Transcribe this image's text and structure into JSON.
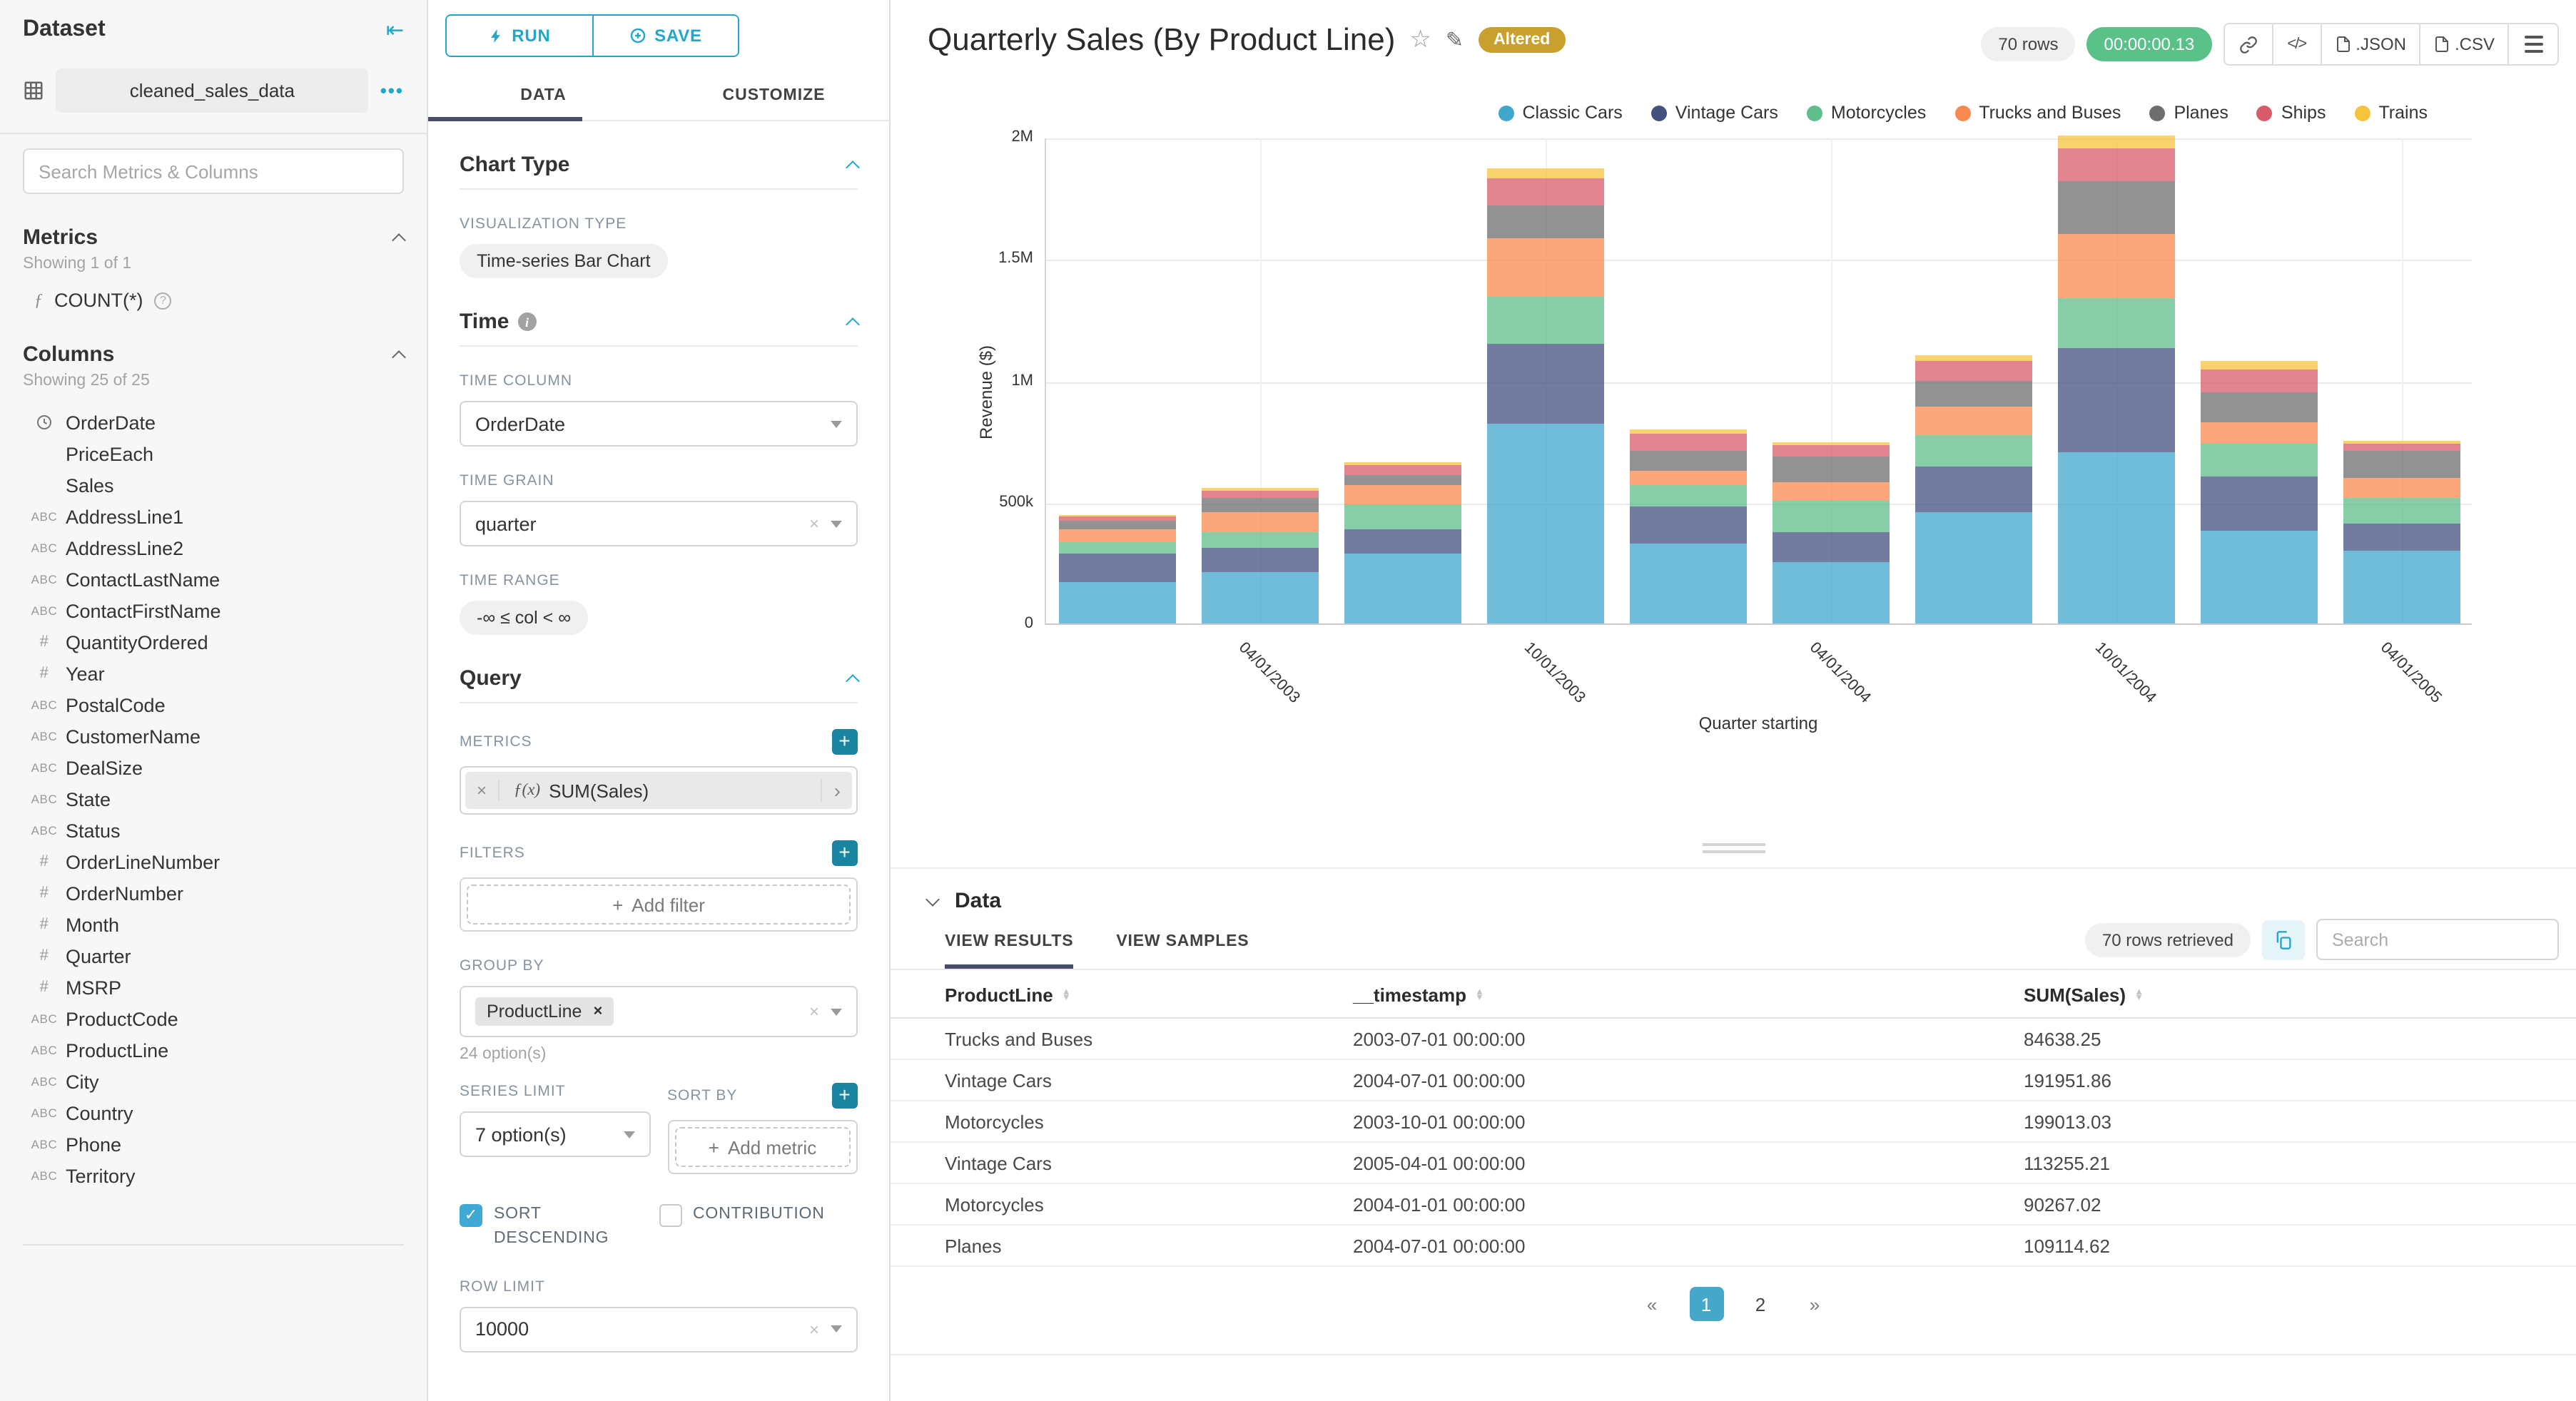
{
  "left_panel": {
    "title": "Dataset",
    "dataset_name": "cleaned_sales_data",
    "more_menu": "•••",
    "search_placeholder": "Search Metrics & Columns",
    "metrics_section": {
      "title": "Metrics",
      "showing": "Showing 1 of 1",
      "items": [
        {
          "icon": "function",
          "label": "COUNT(*)"
        }
      ]
    },
    "columns_section": {
      "title": "Columns",
      "showing": "Showing 25 of 25",
      "items": [
        {
          "type": "time",
          "label": "OrderDate"
        },
        {
          "type": "none",
          "label": "PriceEach"
        },
        {
          "type": "none",
          "label": "Sales"
        },
        {
          "type": "text",
          "label": "AddressLine1"
        },
        {
          "type": "text",
          "label": "AddressLine2"
        },
        {
          "type": "text",
          "label": "ContactLastName"
        },
        {
          "type": "text",
          "label": "ContactFirstName"
        },
        {
          "type": "num",
          "label": "QuantityOrdered"
        },
        {
          "type": "num",
          "label": "Year"
        },
        {
          "type": "text",
          "label": "PostalCode"
        },
        {
          "type": "text",
          "label": "CustomerName"
        },
        {
          "type": "text",
          "label": "DealSize"
        },
        {
          "type": "text",
          "label": "State"
        },
        {
          "type": "text",
          "label": "Status"
        },
        {
          "type": "num",
          "label": "OrderLineNumber"
        },
        {
          "type": "num",
          "label": "OrderNumber"
        },
        {
          "type": "num",
          "label": "Month"
        },
        {
          "type": "num",
          "label": "Quarter"
        },
        {
          "type": "num",
          "label": "MSRP"
        },
        {
          "type": "text",
          "label": "ProductCode"
        },
        {
          "type": "text",
          "label": "ProductLine"
        },
        {
          "type": "text",
          "label": "City"
        },
        {
          "type": "text",
          "label": "Country"
        },
        {
          "type": "text",
          "label": "Phone"
        },
        {
          "type": "text",
          "label": "Territory"
        }
      ]
    }
  },
  "control_panel": {
    "run_label": "RUN",
    "save_label": "SAVE",
    "tabs": [
      "DATA",
      "CUSTOMIZE"
    ],
    "active_tab": "DATA",
    "chart_type_section": "Chart Type",
    "viz_type_label": "VISUALIZATION TYPE",
    "viz_type_value": "Time-series Bar Chart",
    "time_section": "Time",
    "time_column_label": "TIME COLUMN",
    "time_column_value": "OrderDate",
    "time_grain_label": "TIME GRAIN",
    "time_grain_value": "quarter",
    "time_range_label": "TIME RANGE",
    "time_range_value": "-∞ ≤ col < ∞",
    "query_section": "Query",
    "metrics_label": "METRICS",
    "metric_prefix": "ƒ(x)",
    "metric_value": "SUM(Sales)",
    "filters_label": "FILTERS",
    "add_filter_label": "Add filter",
    "group_by_label": "GROUP BY",
    "group_by_value": "ProductLine",
    "group_by_hint": "24 option(s)",
    "series_limit_label": "SERIES LIMIT",
    "series_limit_value": "7 option(s)",
    "sort_by_label": "SORT BY",
    "add_metric_label": "Add metric",
    "sort_descending_label": "SORT DESCENDING",
    "contribution_label": "CONTRIBUTION",
    "row_limit_label": "ROW LIMIT",
    "row_limit_value": "10000"
  },
  "header": {
    "title": "Quarterly Sales (By Product Line)",
    "badge": "Altered",
    "rows_pill": "70 rows",
    "timer": "00:00:00.13",
    "export_json_label": ".JSON",
    "export_csv_label": ".CSV"
  },
  "chart_data": {
    "type": "bar",
    "stacked": true,
    "title": "Quarterly Sales (By Product Line)",
    "xlabel": "Quarter starting",
    "ylabel": "Revenue ($)",
    "ylim": [
      0,
      2000000
    ],
    "ytick_labels": [
      "0",
      "500k",
      "1M",
      "1.5M",
      "2M"
    ],
    "ytick_values": [
      0,
      500000,
      1000000,
      1500000,
      2000000
    ],
    "grid": true,
    "legend_position": "top-right",
    "categories": [
      "2003-01-01",
      "2003-04-01",
      "2003-07-01",
      "2003-10-01",
      "2004-01-01",
      "2004-04-01",
      "2004-07-01",
      "2004-10-01",
      "2005-01-01",
      "2005-04-01"
    ],
    "x_tick_labels": [
      "",
      "04/01/2003",
      "",
      "10/01/2003",
      "",
      "04/01/2004",
      "",
      "10/01/2004",
      "",
      "04/01/2005"
    ],
    "series": [
      {
        "name": "Classic Cars",
        "color": "#3FA7CB",
        "values": [
          171000,
          212000,
          286000,
          820000,
          330000,
          255000,
          455000,
          703000,
          380000,
          300000
        ]
      },
      {
        "name": "Vintage Cars",
        "color": "#44507E",
        "values": [
          117000,
          97000,
          102000,
          327000,
          150000,
          120000,
          191951.86,
          427000,
          225000,
          113255.21
        ]
      },
      {
        "name": "Motorcycles",
        "color": "#5FBE8B",
        "values": [
          47000,
          65000,
          97000,
          199013.03,
          90267.02,
          130000,
          125000,
          206000,
          136000,
          105000
        ]
      },
      {
        "name": "Trucks and Buses",
        "color": "#F98A4F",
        "values": [
          53000,
          83000,
          84638.25,
          240000,
          55000,
          78000,
          118000,
          267000,
          85000,
          80000
        ]
      },
      {
        "name": "Planes",
        "color": "#6E6E6E",
        "values": [
          32000,
          58000,
          39000,
          133000,
          82000,
          103000,
          109114.62,
          215000,
          124000,
          112000
        ]
      },
      {
        "name": "Ships",
        "color": "#D85B6A",
        "values": [
          18000,
          30000,
          44000,
          114000,
          75000,
          50000,
          80000,
          138000,
          95000,
          30000
        ]
      },
      {
        "name": "Trains",
        "color": "#F6C43C",
        "values": [
          9000,
          11000,
          10000,
          36000,
          17000,
          12000,
          22000,
          49000,
          32000,
          9000
        ]
      }
    ]
  },
  "data_panel": {
    "title": "Data",
    "tabs": [
      "VIEW RESULTS",
      "VIEW SAMPLES"
    ],
    "active_tab": "VIEW RESULTS",
    "rows_retrieved": "70 rows retrieved",
    "search_placeholder": "Search",
    "columns": [
      "ProductLine",
      "__timestamp",
      "SUM(Sales)"
    ],
    "rows": [
      [
        "Trucks and Buses",
        "2003-07-01 00:00:00",
        "84638.25"
      ],
      [
        "Vintage Cars",
        "2004-07-01 00:00:00",
        "191951.86"
      ],
      [
        "Motorcycles",
        "2003-10-01 00:00:00",
        "199013.03"
      ],
      [
        "Vintage Cars",
        "2005-04-01 00:00:00",
        "113255.21"
      ],
      [
        "Motorcycles",
        "2004-01-01 00:00:00",
        "90267.02"
      ],
      [
        "Planes",
        "2004-07-01 00:00:00",
        "109114.62"
      ]
    ],
    "pagination": [
      "«",
      "1",
      "2",
      "»"
    ],
    "active_page": "1"
  }
}
